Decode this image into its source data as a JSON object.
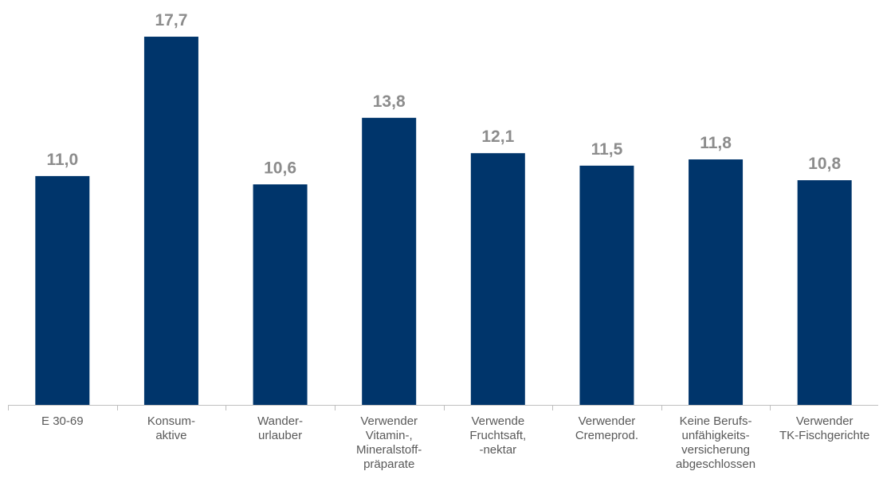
{
  "colors": {
    "bar": "#00356b",
    "value_label": "#8c8c8c",
    "category_label": "#595959",
    "axis": "#bfbfbf"
  },
  "chart_data": {
    "type": "bar",
    "categories": [
      [
        "E 30-69"
      ],
      [
        "Konsum-",
        "aktive"
      ],
      [
        "Wander-",
        "urlauber"
      ],
      [
        "Verwender",
        "Vitamin-,",
        "Mineralstoff-",
        "präparate"
      ],
      [
        "Verwende",
        "Fruchtsaft,",
        "-nektar"
      ],
      [
        "Verwender",
        "Cremeprod."
      ],
      [
        "Keine Berufs-",
        "unfähigkeits-",
        "versicherung",
        "abgeschlossen"
      ],
      [
        "Verwender",
        "TK-Fischgerichte"
      ]
    ],
    "values": [
      11.0,
      17.7,
      10.6,
      13.8,
      12.1,
      11.5,
      11.8,
      10.8
    ],
    "value_labels": [
      "11,0",
      "17,7",
      "10,6",
      "13,8",
      "12,1",
      "11,5",
      "11,8",
      "10,8"
    ],
    "ylim": [
      0,
      19
    ],
    "title": "",
    "xlabel": "",
    "ylabel": "",
    "grid": false,
    "legend": "none"
  }
}
